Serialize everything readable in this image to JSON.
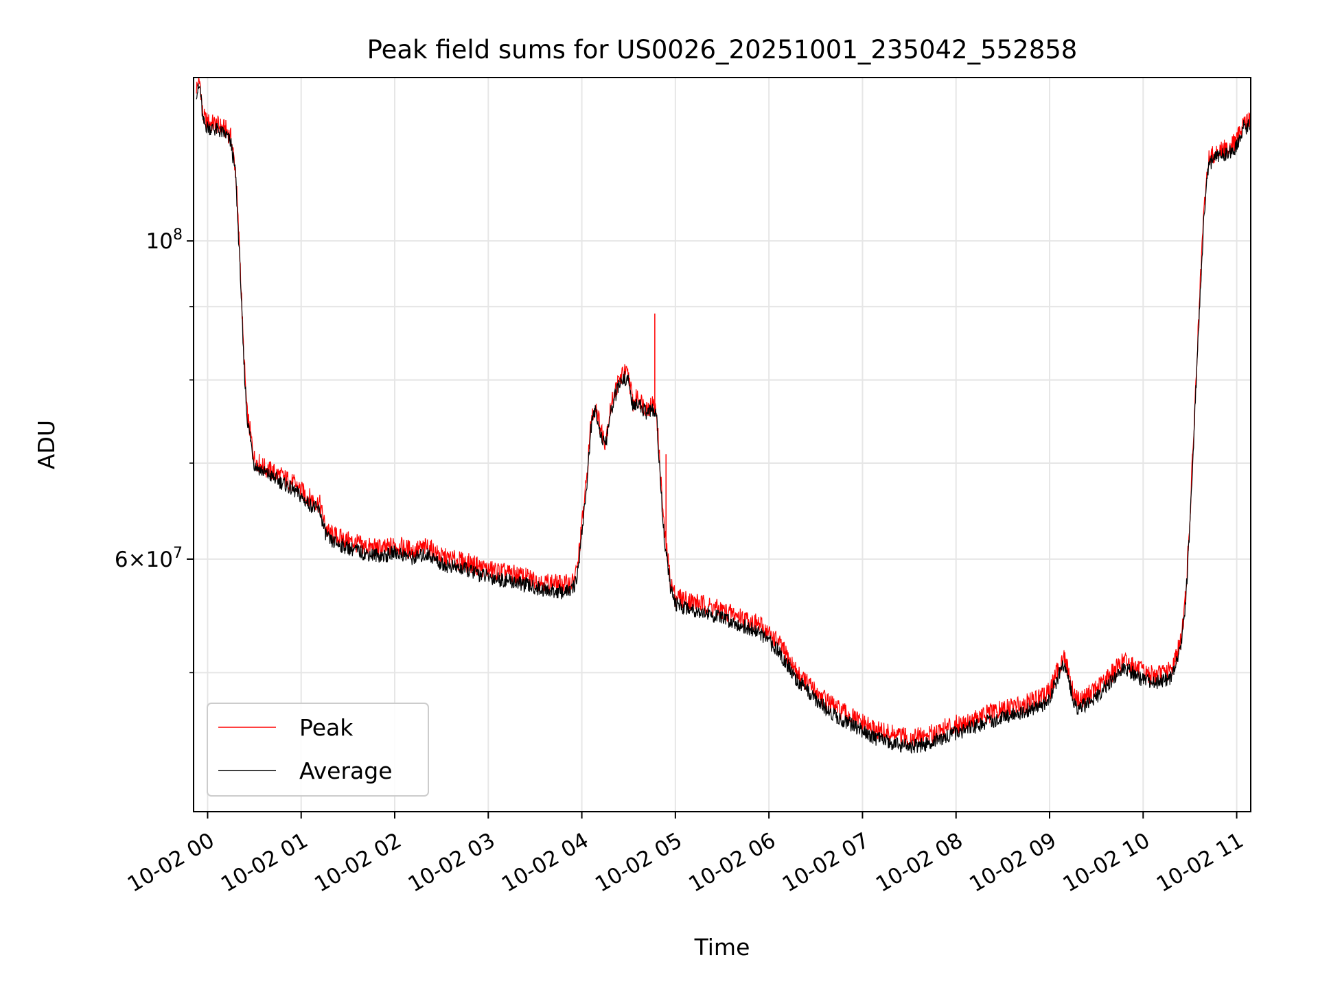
{
  "chart_data": {
    "type": "line",
    "title": "Peak field sums for US0026_20251001_235042_552858",
    "xlabel": "Time",
    "ylabel": "ADU",
    "yscale": "log",
    "grid": true,
    "legend_position": "bottom-left",
    "xlim": [
      -0.15,
      11.15
    ],
    "ylim": [
      40000000,
      130000000
    ],
    "x_ticks": [
      {
        "value": 0,
        "label": "10-02 00"
      },
      {
        "value": 1,
        "label": "10-02 01"
      },
      {
        "value": 2,
        "label": "10-02 02"
      },
      {
        "value": 3,
        "label": "10-02 03"
      },
      {
        "value": 4,
        "label": "10-02 04"
      },
      {
        "value": 5,
        "label": "10-02 05"
      },
      {
        "value": 6,
        "label": "10-02 06"
      },
      {
        "value": 7,
        "label": "10-02 07"
      },
      {
        "value": 8,
        "label": "10-02 08"
      },
      {
        "value": 9,
        "label": "10-02 09"
      },
      {
        "value": 10,
        "label": "10-02 10"
      },
      {
        "value": 11,
        "label": "10-02 11"
      }
    ],
    "y_major_ticks": [
      {
        "value": 100000000,
        "base": "10",
        "exp": "8"
      },
      {
        "value": 60000000,
        "mantissa": "6",
        "base": "10",
        "exp": "7"
      }
    ],
    "y_minor_ticks": [
      50000000,
      70000000,
      80000000,
      90000000
    ],
    "x_hours_unit": "hours since 10-02 00:00",
    "series": [
      {
        "name": "Peak",
        "color": "#ff0000",
        "x": [
          -0.12,
          -0.08,
          -0.05,
          0.0,
          0.1,
          0.2,
          0.25,
          0.3,
          0.32,
          0.35,
          0.38,
          0.42,
          0.5,
          0.6,
          0.7,
          0.8,
          0.95,
          1.05,
          1.2,
          1.25,
          1.3,
          1.5,
          1.7,
          1.9,
          2.0,
          2.2,
          2.35,
          2.5,
          2.8,
          3.0,
          3.3,
          3.6,
          3.8,
          3.9,
          3.95,
          4.05,
          4.1,
          4.15,
          4.2,
          4.25,
          4.3,
          4.35,
          4.4,
          4.45,
          4.5,
          4.55,
          4.6,
          4.65,
          4.7,
          4.75,
          4.8,
          4.82,
          4.88,
          4.95,
          5.0,
          5.3,
          5.6,
          5.9,
          6.1,
          6.3,
          6.5,
          6.7,
          6.9,
          7.1,
          7.3,
          7.5,
          7.7,
          7.9,
          8.1,
          8.3,
          8.5,
          8.7,
          8.9,
          9.0,
          9.1,
          9.15,
          9.2,
          9.25,
          9.3,
          9.4,
          9.5,
          9.6,
          9.7,
          9.8,
          9.9,
          10.0,
          10.1,
          10.2,
          10.3,
          10.4,
          10.45,
          10.5,
          10.55,
          10.6,
          10.65,
          10.7,
          10.75,
          10.8,
          10.9,
          11.0,
          11.05,
          11.08,
          11.1,
          11.15
        ],
        "values": [
          128000000,
          129000000,
          122000000,
          121000000,
          120500000,
          119500000,
          118000000,
          112000000,
          105000000,
          96000000,
          85000000,
          76000000,
          70500000,
          69500000,
          69000000,
          68500000,
          67500000,
          66500000,
          65500000,
          63500000,
          62500000,
          61800000,
          61200000,
          61000000,
          61400000,
          60800000,
          61200000,
          60200000,
          59600000,
          59000000,
          58500000,
          57800000,
          57600000,
          57800000,
          59000000,
          68000000,
          75000000,
          77000000,
          74000000,
          72500000,
          76000000,
          78500000,
          80000000,
          81000000,
          80500000,
          77000000,
          78000000,
          77000000,
          76500000,
          77000000,
          76000000,
          72000000,
          63000000,
          57800000,
          56500000,
          55800000,
          55000000,
          54000000,
          52500000,
          50000000,
          48500000,
          47300000,
          46500000,
          45700000,
          45300000,
          45000000,
          45200000,
          45800000,
          46200000,
          46700000,
          47100000,
          47500000,
          48000000,
          48500000,
          50500000,
          51300000,
          50200000,
          48500000,
          47800000,
          48200000,
          48700000,
          49500000,
          50200000,
          51000000,
          50500000,
          50000000,
          49800000,
          49900000,
          50200000,
          52500000,
          56000000,
          64000000,
          76000000,
          90000000,
          105000000,
          114000000,
          115000000,
          115500000,
          116000000,
          117500000,
          120000000,
          121500000,
          121000000,
          121500000
        ]
      },
      {
        "name": "Average",
        "color": "#000000",
        "x": [
          -0.12,
          -0.08,
          -0.05,
          0.0,
          0.1,
          0.2,
          0.25,
          0.3,
          0.32,
          0.35,
          0.38,
          0.42,
          0.5,
          0.6,
          0.7,
          0.8,
          0.95,
          1.05,
          1.2,
          1.25,
          1.3,
          1.5,
          1.7,
          1.9,
          2.0,
          2.2,
          2.35,
          2.5,
          2.8,
          3.0,
          3.3,
          3.6,
          3.8,
          3.9,
          3.95,
          4.05,
          4.1,
          4.15,
          4.2,
          4.25,
          4.3,
          4.35,
          4.4,
          4.45,
          4.5,
          4.55,
          4.6,
          4.65,
          4.7,
          4.75,
          4.8,
          4.82,
          4.88,
          4.95,
          5.0,
          5.3,
          5.6,
          5.9,
          6.1,
          6.3,
          6.5,
          6.7,
          6.9,
          7.1,
          7.3,
          7.5,
          7.7,
          7.9,
          8.1,
          8.3,
          8.5,
          8.7,
          8.9,
          9.0,
          9.1,
          9.15,
          9.2,
          9.25,
          9.3,
          9.4,
          9.5,
          9.6,
          9.7,
          9.8,
          9.9,
          10.0,
          10.1,
          10.2,
          10.3,
          10.4,
          10.45,
          10.5,
          10.55,
          10.6,
          10.65,
          10.7,
          10.75,
          10.8,
          10.9,
          11.0,
          11.05,
          11.08,
          11.1,
          11.15
        ],
        "values": [
          127000000,
          128000000,
          121000000,
          120000000,
          119500000,
          118500000,
          117000000,
          111000000,
          104000000,
          95000000,
          84000000,
          75500000,
          69800000,
          69000000,
          68400000,
          67800000,
          66800000,
          65800000,
          64800000,
          62800000,
          61800000,
          61100000,
          60500000,
          60300000,
          60700000,
          60100000,
          60500000,
          59500000,
          58900000,
          58300000,
          57800000,
          57100000,
          56900000,
          57100000,
          58300000,
          67200000,
          74300000,
          76300000,
          73300000,
          71800000,
          75300000,
          77800000,
          79300000,
          80300000,
          79800000,
          76300000,
          77300000,
          76300000,
          75800000,
          76300000,
          75300000,
          71300000,
          62300000,
          57100000,
          55800000,
          55100000,
          54300000,
          53300000,
          51800000,
          49400000,
          47900000,
          46700000,
          45900000,
          45100000,
          44700000,
          44400000,
          44600000,
          45200000,
          45600000,
          46100000,
          46500000,
          46900000,
          47400000,
          47900000,
          49900000,
          50700000,
          49600000,
          47900000,
          47200000,
          47600000,
          48100000,
          48900000,
          49600000,
          50400000,
          49900000,
          49400000,
          49200000,
          49300000,
          49600000,
          51900000,
          55300000,
          63300000,
          75300000,
          89000000,
          104000000,
          113000000,
          114000000,
          114500000,
          115000000,
          116500000,
          119000000,
          120500000,
          120000000,
          120500000
        ]
      }
    ]
  }
}
